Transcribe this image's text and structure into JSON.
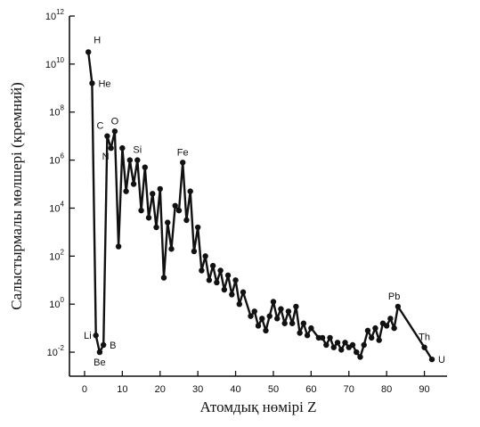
{
  "chart_data": {
    "type": "line",
    "xlabel": "Атомдық нөмірі  Z",
    "ylabel": "Салыстырмалы мөлшері (кремний)",
    "xlim": [
      -4,
      96
    ],
    "ylim": [
      -3,
      12
    ],
    "y_scale": "log10",
    "x_ticks": [
      0,
      10,
      20,
      30,
      40,
      50,
      60,
      70,
      80,
      90
    ],
    "y_ticks": [
      {
        "exp": 12,
        "base": "10",
        "sup": "12"
      },
      {
        "exp": 10,
        "base": "10",
        "sup": "10"
      },
      {
        "exp": 8,
        "base": "10",
        "sup": "8"
      },
      {
        "exp": 6,
        "base": "10",
        "sup": "6"
      },
      {
        "exp": 4,
        "base": "10",
        "sup": "4"
      },
      {
        "exp": 2,
        "base": "10",
        "sup": "2"
      },
      {
        "exp": 0,
        "base": "10",
        "sup": "0"
      },
      {
        "exp": -2,
        "base": "10",
        "sup": "-2"
      }
    ],
    "series": [
      {
        "x": [
          1,
          2,
          3,
          4,
          5,
          6,
          7,
          8,
          9,
          10,
          11,
          12,
          13,
          14,
          15,
          16,
          17,
          18,
          19,
          20,
          21,
          22,
          23,
          24,
          25,
          26,
          27,
          28,
          29,
          30,
          31,
          32,
          33,
          34,
          35,
          36,
          37,
          38,
          39,
          40,
          41,
          42,
          44,
          45,
          46,
          47,
          48,
          49,
          50,
          51,
          52,
          53,
          54,
          55,
          56,
          57,
          58,
          59,
          60,
          62,
          63,
          64,
          65,
          66,
          67,
          68,
          69,
          70,
          71,
          72,
          73,
          74,
          75,
          76,
          77,
          78,
          79,
          80,
          81,
          82,
          83,
          90,
          92
        ],
        "log_y": [
          10.5,
          9.2,
          -1.3,
          -2.0,
          -1.7,
          7.0,
          6.5,
          7.2,
          2.4,
          6.5,
          4.7,
          6.0,
          5.0,
          6.0,
          3.9,
          5.7,
          3.6,
          4.6,
          3.2,
          4.8,
          1.1,
          3.4,
          2.3,
          4.1,
          3.9,
          5.9,
          3.5,
          4.7,
          2.2,
          3.2,
          1.4,
          2.0,
          1.0,
          1.6,
          0.9,
          1.4,
          0.6,
          1.2,
          0.4,
          1.0,
          0.0,
          0.5,
          -0.5,
          -0.3,
          -0.9,
          -0.6,
          -1.1,
          -0.5,
          0.1,
          -0.6,
          -0.2,
          -0.8,
          -0.3,
          -0.8,
          -0.1,
          -1.2,
          -0.8,
          -1.3,
          -1.0,
          -1.4,
          -1.4,
          -1.7,
          -1.4,
          -1.8,
          -1.6,
          -1.9,
          -1.6,
          -1.8,
          -1.7,
          -2.0,
          -2.2,
          -1.7,
          -1.1,
          -1.4,
          -1.0,
          -1.5,
          -0.8,
          -0.9,
          -0.6,
          -1.0,
          -0.1,
          -1.8,
          -2.3
        ]
      }
    ],
    "annotations": [
      {
        "text": "H",
        "z": 1,
        "log_y": 10.5,
        "pos": "above-right"
      },
      {
        "text": "He",
        "z": 2,
        "log_y": 9.2,
        "pos": "right"
      },
      {
        "text": "Li",
        "z": 3,
        "log_y": -1.3,
        "pos": "left"
      },
      {
        "text": "Be",
        "z": 4,
        "log_y": -2.0,
        "pos": "below"
      },
      {
        "text": "B",
        "z": 5,
        "log_y": -1.7,
        "pos": "right"
      },
      {
        "text": "C",
        "z": 6,
        "log_y": 7.0,
        "pos": "above-left"
      },
      {
        "text": "N",
        "z": 7,
        "log_y": 6.5,
        "pos": "below-left"
      },
      {
        "text": "O",
        "z": 8,
        "log_y": 7.2,
        "pos": "above"
      },
      {
        "text": "Si",
        "z": 14,
        "log_y": 6.0,
        "pos": "above"
      },
      {
        "text": "Fe",
        "z": 26,
        "log_y": 5.9,
        "pos": "above"
      },
      {
        "text": "Pb",
        "z": 82,
        "log_y": -0.1,
        "pos": "above"
      },
      {
        "text": "Th",
        "z": 90,
        "log_y": -1.8,
        "pos": "above"
      },
      {
        "text": "U",
        "z": 92,
        "log_y": -2.3,
        "pos": "right"
      }
    ]
  }
}
